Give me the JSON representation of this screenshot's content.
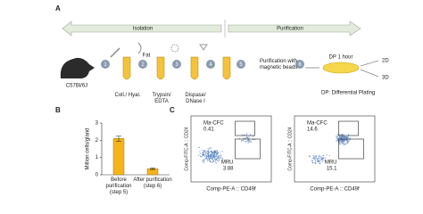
{
  "panel_a": {
    "label": "A",
    "phases": [
      "Isolation",
      "Purification"
    ],
    "mouse": "C57Bl/6J",
    "steps": [
      "1",
      "2",
      "3",
      "4",
      "5",
      "6"
    ],
    "fat": "Fat",
    "reagents": [
      "Coll./ Hyal.",
      "Trypsin/ EDTA",
      "Dispase/ DNase I"
    ],
    "purification": "Purification with magnetic beads",
    "dp": "DP 1 hour",
    "outputs": [
      "2D",
      "3D"
    ],
    "legend": "DP: Differential Plating"
  },
  "panel_b": {
    "label": "B"
  },
  "chart_data": {
    "type": "bar",
    "y_label": "Million cells/gland",
    "categories": [
      "Before purification (step 5)",
      "After purification (step 6)"
    ],
    "values": [
      2.1,
      0.35
    ],
    "errors": [
      0.15,
      0.05
    ],
    "color": "#f4b41a",
    "ylim": [
      0,
      3
    ],
    "yticks": [
      0,
      1,
      2,
      3
    ]
  },
  "panel_c": {
    "label": "C",
    "plots": [
      {
        "x_label": "Comp-PE-A :: CD49f",
        "y_label": "Comp-FITC-A :: CD24",
        "gates": [
          {
            "name": "Ma-CFC",
            "value": "0.41"
          },
          {
            "name": "MRU",
            "value": "3.88"
          }
        ]
      },
      {
        "x_label": "Comp-PE-A :: CD49f",
        "y_label": "Comp-FITC-A :: CD24",
        "gates": [
          {
            "name": "Ma-CFC",
            "value": "14.6"
          },
          {
            "name": "MRU",
            "value": "15.1"
          }
        ]
      }
    ]
  }
}
